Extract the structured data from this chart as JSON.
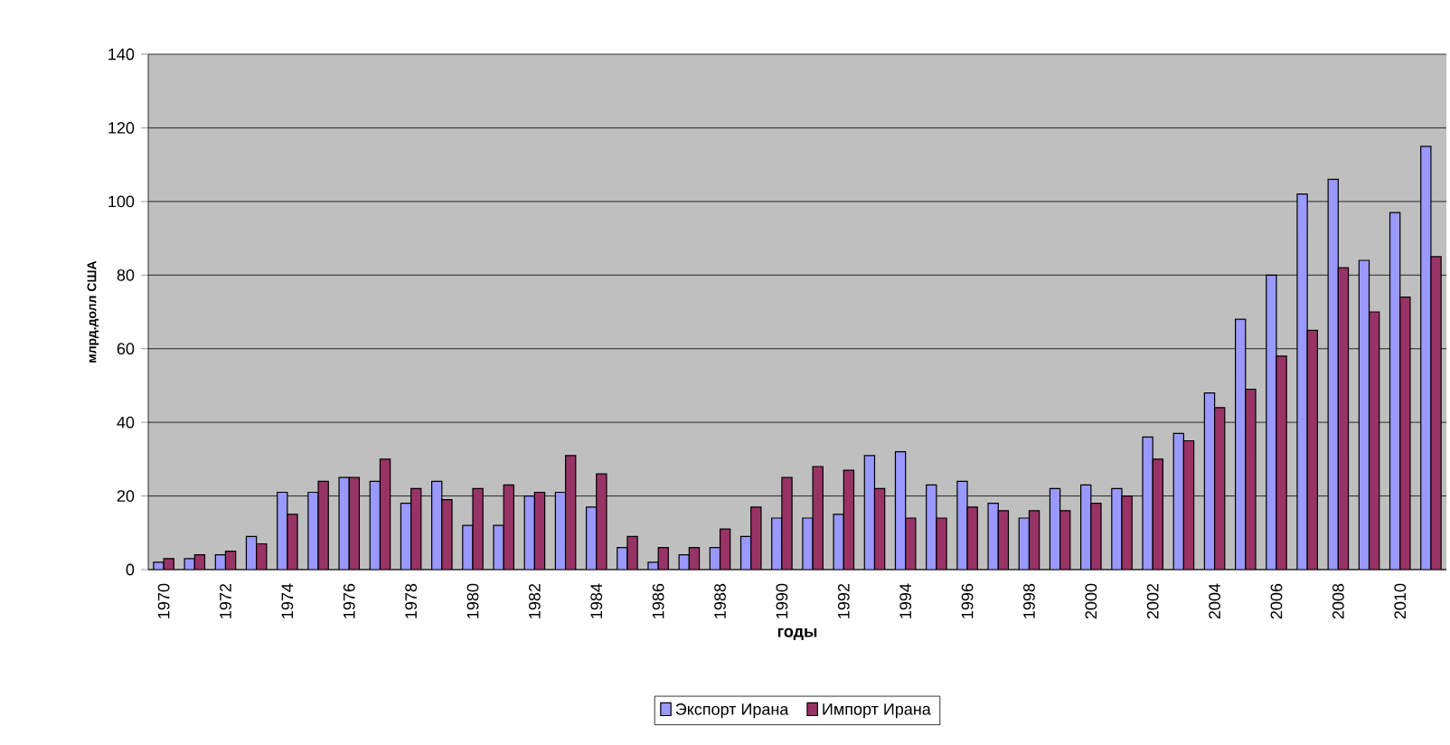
{
  "chart_data": {
    "type": "bar",
    "xlabel": "годы",
    "ylabel": "млрд.долл США",
    "categories": [
      "1970",
      null,
      "1972",
      null,
      "1974",
      null,
      "1976",
      null,
      "1978",
      null,
      "1980",
      null,
      "1982",
      null,
      "1984",
      null,
      "1986",
      null,
      "1988",
      null,
      "1990",
      null,
      "1992",
      null,
      "1994",
      null,
      "1996",
      null,
      "1998",
      null,
      "2000",
      null,
      "2002",
      null,
      "2004",
      null,
      "2006",
      null,
      "2008",
      null,
      "2010",
      null
    ],
    "series": [
      {
        "name": "Экспорт Ирана",
        "color": "#9999ff",
        "values": [
          2,
          3,
          4,
          9,
          21,
          21,
          25,
          24,
          18,
          24,
          12,
          12,
          20,
          21,
          17,
          6,
          2,
          4,
          6,
          9,
          14,
          14,
          15,
          31,
          32,
          23,
          24,
          18,
          14,
          22,
          23,
          22,
          36,
          37,
          48,
          68,
          80,
          102,
          106,
          84,
          97,
          115
        ]
      },
      {
        "name": "Импорт Ирана",
        "color": "#993366",
        "values": [
          3,
          4,
          5,
          7,
          15,
          24,
          25,
          30,
          22,
          19,
          22,
          23,
          21,
          31,
          26,
          9,
          6,
          6,
          11,
          17,
          25,
          28,
          27,
          22,
          14,
          14,
          17,
          16,
          16,
          16,
          18,
          20,
          30,
          35,
          44,
          49,
          58,
          65,
          82,
          70,
          74,
          85
        ]
      }
    ],
    "ylim": [
      0,
      140
    ],
    "yticks": [
      0,
      20,
      40,
      60,
      80,
      100,
      120,
      140
    ],
    "grid": "y",
    "legend": "bottom"
  }
}
